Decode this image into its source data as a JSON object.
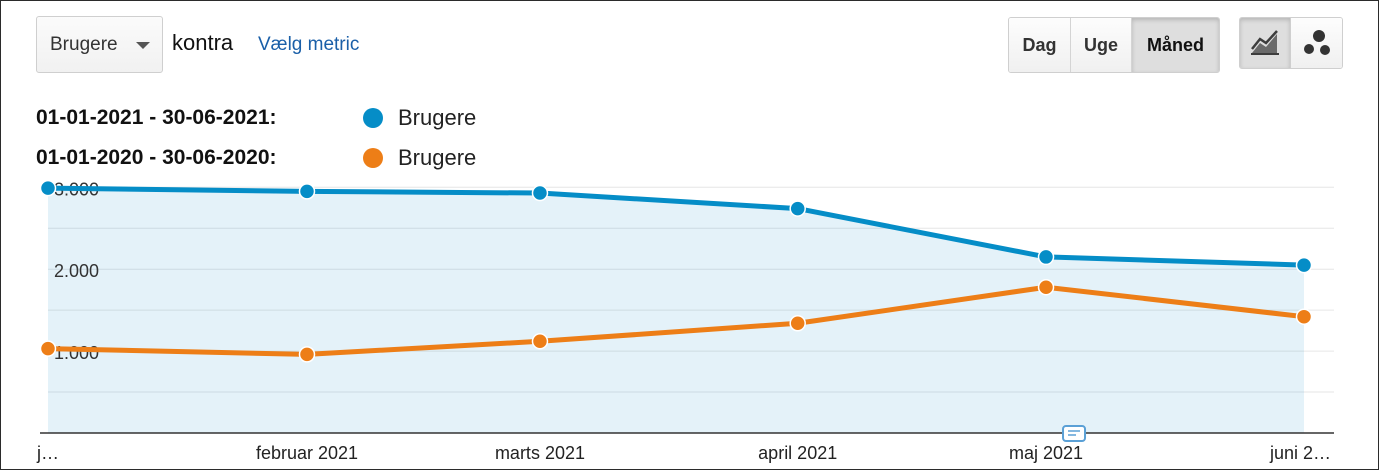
{
  "controls": {
    "dropdown_label": "Brugere",
    "kontra": "kontra",
    "metric_link": "Vælg metric",
    "granularity": [
      "Dag",
      "Uge",
      "Måned"
    ],
    "granularity_active": "Måned",
    "view_icons": [
      "line-chart-icon",
      "motion-chart-icon"
    ]
  },
  "legend": [
    {
      "range": "01-01-2021 - 30-06-2021:",
      "series": "Brugere",
      "color": "#058dc7"
    },
    {
      "range": "01-01-2020 - 30-06-2020:",
      "series": "Brugere",
      "color": "#ed7e17"
    }
  ],
  "chart_data": {
    "type": "line",
    "x": [
      "j…",
      "februar 2021",
      "marts 2021",
      "april 2021",
      "maj 2021",
      "juni 2…"
    ],
    "y_ticks": [
      "3.000",
      "2.000",
      "1.000"
    ],
    "ylim": [
      0,
      3300
    ],
    "grid": true,
    "series": [
      {
        "name": "Brugere",
        "period": "01-01-2021 - 30-06-2021",
        "color": "#058dc7",
        "values": [
          2990,
          2950,
          2930,
          2740,
          2150,
          2050
        ]
      },
      {
        "name": "Brugere",
        "period": "01-01-2020 - 30-06-2020",
        "color": "#ed7e17",
        "values": [
          1030,
          960,
          1120,
          1340,
          1780,
          1420
        ]
      }
    ]
  }
}
